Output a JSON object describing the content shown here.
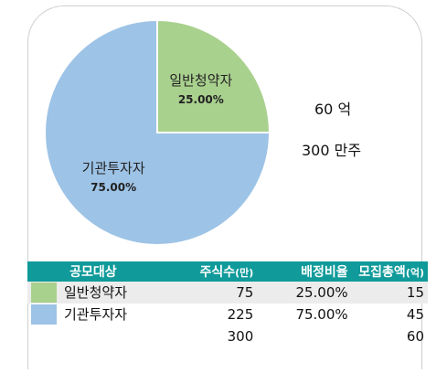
{
  "chart_data": {
    "type": "pie",
    "slices": [
      {
        "label": "일반청약자",
        "value": 25.0,
        "pct_label": "25.00%",
        "color": "#a9d18e"
      },
      {
        "label": "기관투자자",
        "value": 75.0,
        "pct_label": "75.00%",
        "color": "#9dc3e6"
      }
    ]
  },
  "side": {
    "amount": "60 억",
    "shares": "300 만주"
  },
  "table": {
    "headers": [
      "공모대상",
      "주식수",
      "(만)",
      "배정비율",
      "모집총액",
      "(억)"
    ],
    "rows": [
      {
        "name": "일반청약자",
        "shares": "75",
        "ratio": "25.00%",
        "total": "15",
        "color": "#a9d18e"
      },
      {
        "name": "기관투자자",
        "shares": "225",
        "ratio": "75.00%",
        "total": "45",
        "color": "#9dc3e6"
      }
    ],
    "sum": {
      "shares": "300",
      "total": "60"
    }
  }
}
